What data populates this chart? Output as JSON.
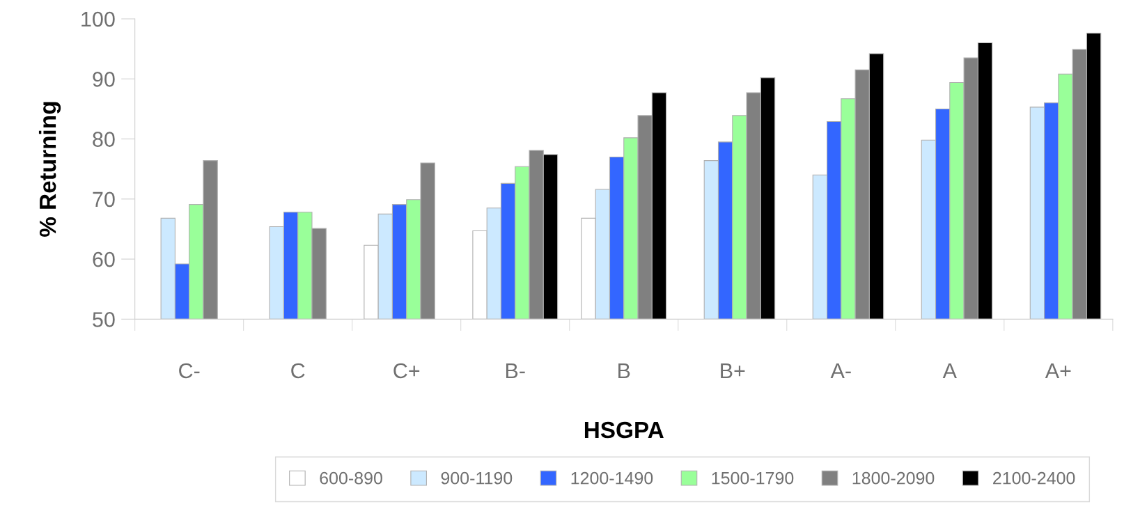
{
  "chart_data": {
    "type": "bar",
    "xlabel": "HSGPA",
    "ylabel": "% Returning",
    "categories": [
      "C-",
      "C",
      "C+",
      "B-",
      "B",
      "B+",
      "A-",
      "A",
      "A+"
    ],
    "ylim": [
      50,
      100
    ],
    "yticks": [
      50,
      60,
      70,
      80,
      90,
      100
    ],
    "grid": false,
    "legend": "bottom",
    "series": [
      {
        "name": "600-890",
        "color": "#ffffff",
        "values": [
          null,
          null,
          62.3,
          64.7,
          66.8,
          null,
          null,
          null,
          null
        ]
      },
      {
        "name": "900-1190",
        "color": "#cce9ff",
        "values": [
          66.8,
          65.4,
          67.5,
          68.5,
          71.6,
          76.4,
          74.0,
          79.8,
          85.3
        ]
      },
      {
        "name": "1200-1490",
        "color": "#3366ff",
        "values": [
          59.2,
          67.8,
          69.1,
          72.6,
          77.0,
          79.5,
          82.9,
          85.0,
          86.0
        ]
      },
      {
        "name": "1500-1790",
        "color": "#99ff99",
        "values": [
          69.1,
          67.8,
          69.9,
          75.4,
          80.2,
          83.9,
          86.7,
          89.4,
          90.8
        ]
      },
      {
        "name": "1800-2090",
        "color": "#808080",
        "values": [
          76.4,
          65.1,
          76.0,
          78.1,
          83.9,
          87.7,
          91.5,
          93.5,
          94.9
        ]
      },
      {
        "name": "2100-2400",
        "color": "#000000",
        "values": [
          null,
          null,
          null,
          77.4,
          87.7,
          90.2,
          94.2,
          96.0,
          97.6
        ]
      }
    ]
  }
}
